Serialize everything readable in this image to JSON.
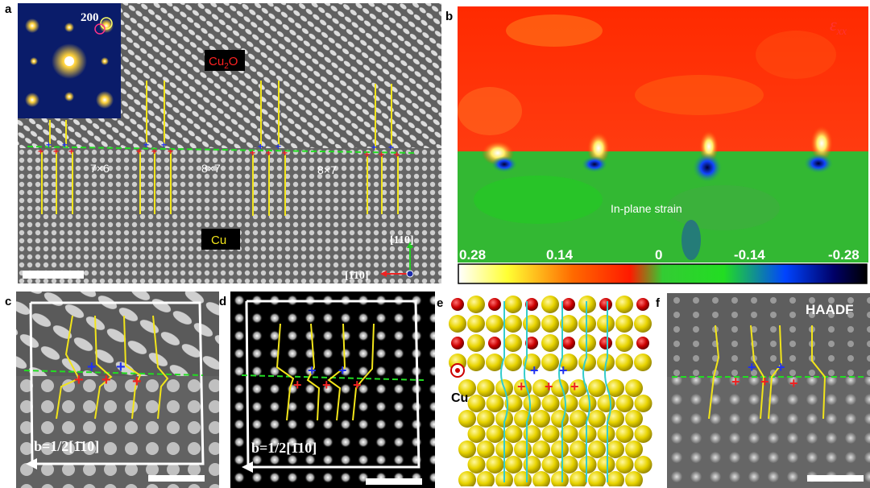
{
  "figure": {
    "panel_labels": {
      "a": "a",
      "b": "b",
      "c": "c",
      "d": "d",
      "e": "e",
      "f": "f"
    },
    "panel_a": {
      "inset_label": "200",
      "phase_top": "Cu",
      "phase_top_sub": "2",
      "phase_top_end": "O",
      "phase_bottom": "Cu",
      "domain_labels": [
        "7×6",
        "8×7",
        "8×7"
      ],
      "axis_vertical": "[110]",
      "axis_horizontal": "[1̄10]",
      "colors": {
        "misfit_line": "#f2e51a",
        "interface": "#22dd22",
        "plus_blue": "#2233ee",
        "plus_red": "#ee2222"
      }
    },
    "panel_b": {
      "strain_symbol": "ε",
      "strain_sub": "xx",
      "caption": "In-plane strain",
      "colorbar_ticks": [
        "0.28",
        "0.14",
        "0",
        "-0.14",
        "-0.28"
      ],
      "colorbar_range": [
        0.28,
        -0.28
      ]
    },
    "panel_c": {
      "burgers": "b=1/2[1̄10]"
    },
    "panel_d": {
      "burgers": "b=1/2[1̄10]"
    },
    "panel_e": {
      "label_cu": "Cu",
      "colors": {
        "cu_atom": "#e8d400",
        "o_atom": "#cc0000",
        "trace": "#33cccc"
      }
    },
    "panel_f": {
      "mode": "HAADF"
    }
  }
}
